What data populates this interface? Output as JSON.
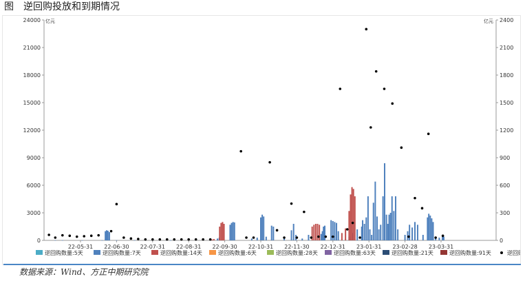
{
  "header": {
    "figure_label": "图",
    "title": "逆回购投放和到期情况"
  },
  "source": "数据来源：Wind、方正中期研究院",
  "chart_data": {
    "type": "bar",
    "left_unit": "亿元",
    "right_unit": "亿元",
    "left_axis": {
      "ylim": [
        0,
        24000
      ],
      "ticks": [
        0,
        3000,
        6000,
        9000,
        12000,
        15000,
        18000,
        21000,
        24000
      ]
    },
    "right_axis": {
      "ylim": [
        0,
        2400
      ],
      "ticks": [
        0,
        300,
        600,
        900,
        1200,
        1500,
        1800,
        2100,
        2400
      ]
    },
    "x_tick_labels": [
      "22-05-31",
      "22-06-30",
      "22-07-31",
      "22-08-31",
      "22-09-30",
      "22-10-31",
      "22-11-30",
      "22-12-31",
      "23-01-31",
      "23-02-28",
      "23-03-31"
    ],
    "legend": [
      {
        "label": "逆回购数量:5天",
        "color": "#4bacc6",
        "kind": "box"
      },
      {
        "label": "逆回购数量:7天",
        "color": "#4f81bd",
        "kind": "box"
      },
      {
        "label": "逆回购数量:14天",
        "color": "#c0504d",
        "kind": "box"
      },
      {
        "label": "逆回购数量:6天",
        "color": "#f79646",
        "kind": "box"
      },
      {
        "label": "逆回购数量:28天",
        "color": "#9bbb59",
        "kind": "box"
      },
      {
        "label": "逆回购数量:63天",
        "color": "#8064a2",
        "kind": "box"
      },
      {
        "label": "逆回购数量:21天",
        "color": "#2c4d75",
        "kind": "box"
      },
      {
        "label": "逆回购数量:91天",
        "color": "#943634",
        "kind": "box"
      },
      {
        "label": "逆回购:到期量",
        "color": "#000000",
        "kind": "dot"
      }
    ],
    "series": [
      {
        "name": "逆回购数量:7天",
        "axis": "right",
        "color": "#4f81bd",
        "points": [
          {
            "t": 0.6,
            "v": 2
          },
          {
            "t": 1.0,
            "v": 2
          },
          {
            "t": 2.1,
            "v": 1
          },
          {
            "t": 3.2,
            "v": 1
          },
          {
            "t": 3.38,
            "v": 100
          },
          {
            "t": 3.45,
            "v": 110
          },
          {
            "t": 3.52,
            "v": 105
          },
          {
            "t": 3.6,
            "v": 90
          },
          {
            "t": 4.0,
            "v": 2
          },
          {
            "t": 5.0,
            "v": 2
          },
          {
            "t": 6.0,
            "v": 2
          },
          {
            "t": 7.0,
            "v": 2
          },
          {
            "t": 9.6,
            "v": 20
          },
          {
            "t": 9.7,
            "v": 30
          },
          {
            "t": 10.3,
            "v": 170
          },
          {
            "t": 10.38,
            "v": 190
          },
          {
            "t": 10.46,
            "v": 200
          },
          {
            "t": 10.54,
            "v": 195
          },
          {
            "t": 11.5,
            "v": 20
          },
          {
            "t": 11.8,
            "v": 30
          },
          {
            "t": 12.0,
            "v": 250
          },
          {
            "t": 12.08,
            "v": 280
          },
          {
            "t": 12.16,
            "v": 260
          },
          {
            "t": 12.3,
            "v": 40
          },
          {
            "t": 12.6,
            "v": 160
          },
          {
            "t": 12.7,
            "v": 150
          },
          {
            "t": 13.3,
            "v": 20
          },
          {
            "t": 13.7,
            "v": 110
          },
          {
            "t": 13.82,
            "v": 180
          },
          {
            "t": 13.95,
            "v": 60
          },
          {
            "t": 14.3,
            "v": 20
          },
          {
            "t": 14.65,
            "v": 60
          },
          {
            "t": 15.35,
            "v": 70
          },
          {
            "t": 15.42,
            "v": 100
          },
          {
            "t": 15.48,
            "v": 150
          },
          {
            "t": 15.55,
            "v": 160
          },
          {
            "t": 15.9,
            "v": 220
          },
          {
            "t": 16.0,
            "v": 210
          },
          {
            "t": 16.1,
            "v": 200
          },
          {
            "t": 16.2,
            "v": 190
          },
          {
            "t": 16.3,
            "v": 100
          },
          {
            "t": 16.9,
            "v": 40
          },
          {
            "t": 17.1,
            "v": 80
          },
          {
            "t": 17.35,
            "v": 120
          },
          {
            "t": 17.6,
            "v": 150
          },
          {
            "t": 17.65,
            "v": 220
          },
          {
            "t": 17.75,
            "v": 180
          },
          {
            "t": 17.85,
            "v": 250
          },
          {
            "t": 17.95,
            "v": 480
          },
          {
            "t": 18.05,
            "v": 120
          },
          {
            "t": 18.15,
            "v": 60
          },
          {
            "t": 18.25,
            "v": 410
          },
          {
            "t": 18.35,
            "v": 640
          },
          {
            "t": 18.45,
            "v": 260
          },
          {
            "t": 18.55,
            "v": 120
          },
          {
            "t": 18.65,
            "v": 170
          },
          {
            "t": 18.78,
            "v": 480
          },
          {
            "t": 18.87,
            "v": 840
          },
          {
            "t": 18.97,
            "v": 280
          },
          {
            "t": 19.05,
            "v": 180
          },
          {
            "t": 19.12,
            "v": 280
          },
          {
            "t": 19.2,
            "v": 300
          },
          {
            "t": 19.28,
            "v": 480
          },
          {
            "t": 19.38,
            "v": 320
          },
          {
            "t": 19.48,
            "v": 480
          },
          {
            "t": 19.6,
            "v": 120
          },
          {
            "t": 20.0,
            "v": 60
          },
          {
            "t": 20.15,
            "v": 100
          },
          {
            "t": 20.25,
            "v": 170
          },
          {
            "t": 20.4,
            "v": 140
          },
          {
            "t": 20.55,
            "v": 200
          },
          {
            "t": 20.7,
            "v": 170
          },
          {
            "t": 21.0,
            "v": 60
          },
          {
            "t": 21.25,
            "v": 250
          },
          {
            "t": 21.32,
            "v": 290
          },
          {
            "t": 21.4,
            "v": 270
          },
          {
            "t": 21.48,
            "v": 240
          },
          {
            "t": 21.56,
            "v": 200
          },
          {
            "t": 21.7,
            "v": 40
          },
          {
            "t": 21.9,
            "v": 30
          },
          {
            "t": 22.08,
            "v": 60
          },
          {
            "t": 22.15,
            "v": 40
          }
        ]
      },
      {
        "name": "逆回购数量:14天",
        "axis": "right",
        "color": "#c0504d",
        "points": [
          {
            "t": 9.3,
            "v": 10
          },
          {
            "t": 9.4,
            "v": 15
          },
          {
            "t": 9.72,
            "v": 150
          },
          {
            "t": 9.8,
            "v": 190
          },
          {
            "t": 9.88,
            "v": 200
          },
          {
            "t": 9.96,
            "v": 180
          },
          {
            "t": 14.85,
            "v": 150
          },
          {
            "t": 14.95,
            "v": 170
          },
          {
            "t": 15.05,
            "v": 180
          },
          {
            "t": 15.15,
            "v": 180
          },
          {
            "t": 15.25,
            "v": 170
          },
          {
            "t": 16.5,
            "v": 80
          },
          {
            "t": 16.7,
            "v": 130
          },
          {
            "t": 16.9,
            "v": 320
          },
          {
            "t": 16.98,
            "v": 500
          },
          {
            "t": 17.06,
            "v": 580
          },
          {
            "t": 17.14,
            "v": 560
          },
          {
            "t": 17.22,
            "v": 480
          }
        ]
      },
      {
        "name": "逆回购:到期量",
        "axis": "left",
        "kind": "dot",
        "color": "#000000",
        "points": [
          {
            "t": 0.25,
            "v": 600
          },
          {
            "t": 0.6,
            "v": 300
          },
          {
            "t": 1.0,
            "v": 550
          },
          {
            "t": 1.4,
            "v": 500
          },
          {
            "t": 1.8,
            "v": 400
          },
          {
            "t": 2.2,
            "v": 450
          },
          {
            "t": 2.6,
            "v": 500
          },
          {
            "t": 3.0,
            "v": 550
          },
          {
            "t": 3.7,
            "v": 1000
          },
          {
            "t": 4.0,
            "v": 3950
          },
          {
            "t": 4.4,
            "v": 300
          },
          {
            "t": 4.8,
            "v": 200
          },
          {
            "t": 5.2,
            "v": 150
          },
          {
            "t": 5.6,
            "v": 100
          },
          {
            "t": 6.0,
            "v": 100
          },
          {
            "t": 6.4,
            "v": 100
          },
          {
            "t": 6.8,
            "v": 100
          },
          {
            "t": 7.2,
            "v": 100
          },
          {
            "t": 7.6,
            "v": 100
          },
          {
            "t": 8.0,
            "v": 100
          },
          {
            "t": 8.4,
            "v": 100
          },
          {
            "t": 8.8,
            "v": 100
          },
          {
            "t": 9.2,
            "v": 100
          },
          {
            "t": 10.9,
            "v": 9700
          },
          {
            "t": 11.2,
            "v": 300
          },
          {
            "t": 11.6,
            "v": 300
          },
          {
            "t": 12.5,
            "v": 8500
          },
          {
            "t": 12.9,
            "v": 1100
          },
          {
            "t": 13.3,
            "v": 300
          },
          {
            "t": 13.7,
            "v": 4000
          },
          {
            "t": 14.0,
            "v": 300
          },
          {
            "t": 14.4,
            "v": 3100
          },
          {
            "t": 14.8,
            "v": 300
          },
          {
            "t": 15.2,
            "v": 400
          },
          {
            "t": 15.6,
            "v": 400
          },
          {
            "t": 16.0,
            "v": 400
          },
          {
            "t": 16.4,
            "v": 16500
          },
          {
            "t": 16.8,
            "v": 1200
          },
          {
            "t": 17.1,
            "v": 1900
          },
          {
            "t": 17.5,
            "v": 300
          },
          {
            "t": 17.85,
            "v": 23000
          },
          {
            "t": 18.1,
            "v": 12300
          },
          {
            "t": 18.4,
            "v": 18400
          },
          {
            "t": 18.85,
            "v": 16500
          },
          {
            "t": 19.3,
            "v": 14900
          },
          {
            "t": 19.8,
            "v": 10100
          },
          {
            "t": 20.2,
            "v": 400
          },
          {
            "t": 20.55,
            "v": 4600
          },
          {
            "t": 20.95,
            "v": 3500
          },
          {
            "t": 21.3,
            "v": 11600
          },
          {
            "t": 21.7,
            "v": 300
          },
          {
            "t": 22.1,
            "v": 500
          }
        ]
      }
    ]
  }
}
